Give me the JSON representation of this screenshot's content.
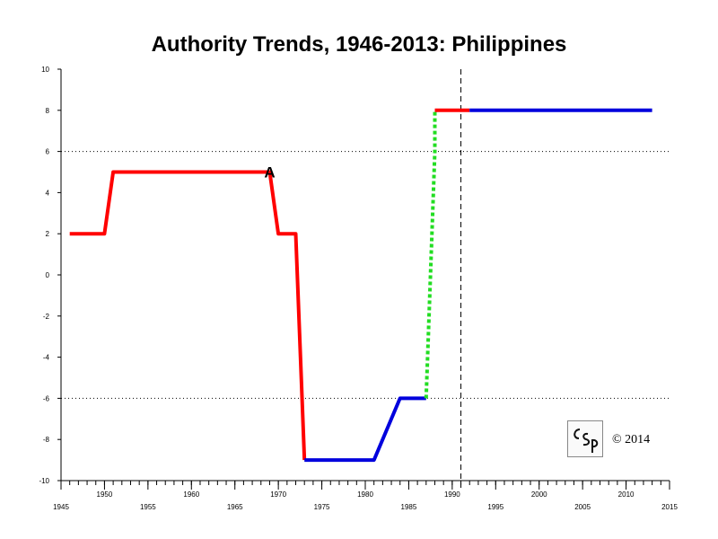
{
  "chart_data": {
    "type": "line",
    "title": "Authority Trends, 1946-2013: Philippines",
    "xlabel": "",
    "ylabel": "",
    "xlim": [
      1945,
      2015
    ],
    "ylim": [
      -10,
      10
    ],
    "x_ticks": [
      1945,
      1950,
      1955,
      1960,
      1965,
      1970,
      1975,
      1980,
      1985,
      1990,
      1995,
      2000,
      2005,
      2010,
      2015
    ],
    "y_ticks": [
      10,
      8,
      6,
      4,
      2,
      0,
      -2,
      -4,
      -6,
      -8,
      -10
    ],
    "reference_lines": [
      6,
      -6
    ],
    "vertical_marker": 1991,
    "series": [
      {
        "color": "#ff0000",
        "style": "solid",
        "points": [
          [
            1946,
            2
          ],
          [
            1950,
            2
          ],
          [
            1951,
            5
          ],
          [
            1969,
            5
          ],
          [
            1970,
            2
          ],
          [
            1972,
            2
          ],
          [
            1973,
            -9
          ]
        ]
      },
      {
        "color": "#0000dd",
        "style": "solid",
        "points": [
          [
            1973,
            -9
          ],
          [
            1981,
            -9
          ],
          [
            1984,
            -6
          ],
          [
            1987,
            -6
          ]
        ]
      },
      {
        "color": "#22dd22",
        "style": "dotted",
        "points": [
          [
            1987,
            -6
          ],
          [
            1988,
            6
          ],
          [
            1988,
            8
          ]
        ]
      },
      {
        "color": "#ff0000",
        "style": "solid",
        "points": [
          [
            1988,
            8
          ],
          [
            1992,
            8
          ]
        ]
      },
      {
        "color": "#0000dd",
        "style": "solid",
        "points": [
          [
            1992,
            8
          ],
          [
            2013,
            8
          ]
        ]
      }
    ],
    "annotations": [
      {
        "text": "A",
        "x": 1969,
        "y": 5
      }
    ]
  },
  "logo_text": "CSP",
  "copyright": "© 2014"
}
